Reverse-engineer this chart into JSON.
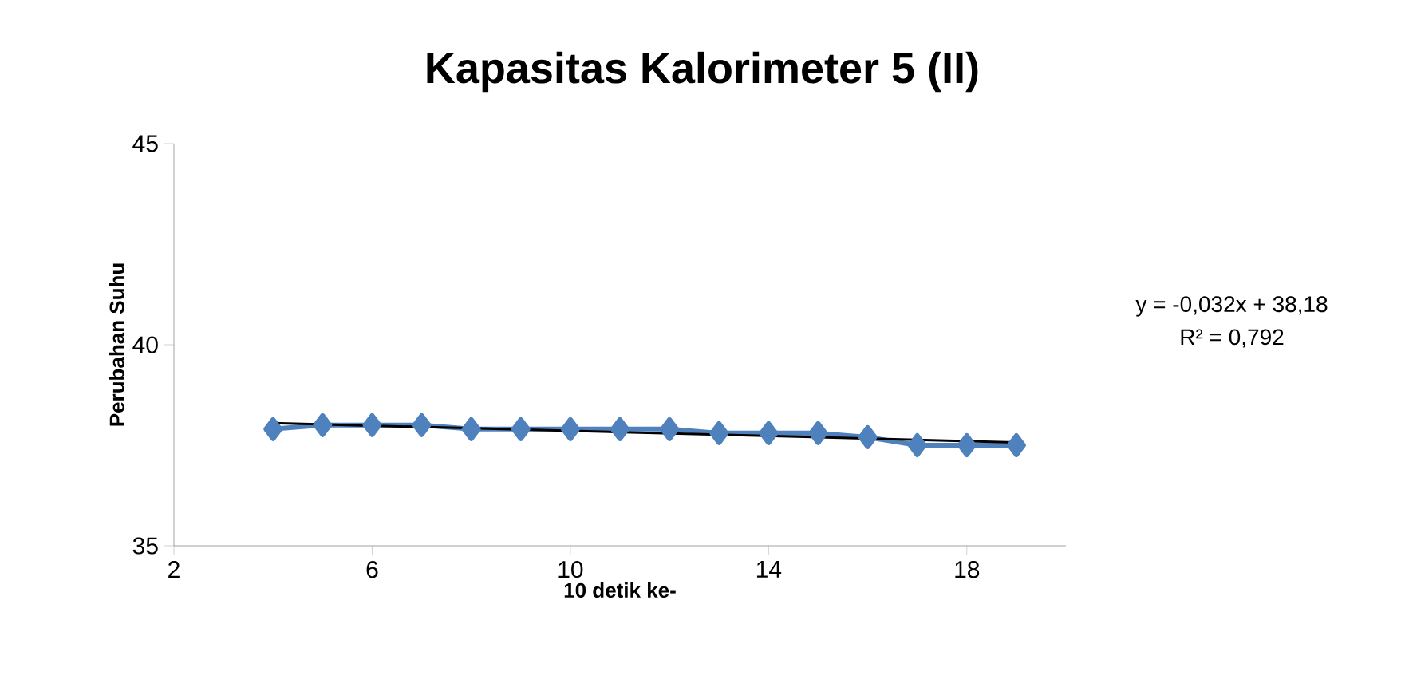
{
  "chart_data": {
    "type": "line",
    "title": "Kapasitas Kalorimeter 5 (II)",
    "xlabel": "10 detik ke-",
    "ylabel": "Perubahan Suhu",
    "x": [
      4,
      5,
      6,
      7,
      8,
      9,
      10,
      11,
      12,
      13,
      14,
      15,
      16,
      17,
      18,
      19
    ],
    "series": [
      {
        "color": "#4f81bd",
        "values": [
          37.9,
          38.0,
          38.0,
          38.0,
          37.9,
          37.9,
          37.9,
          37.9,
          37.9,
          37.8,
          37.8,
          37.8,
          37.7,
          37.5,
          37.5,
          37.5
        ]
      },
      {
        "type": "line",
        "marker": "none",
        "color": "#000000",
        "x": [
          4,
          19
        ],
        "values": [
          38.05,
          37.57
        ]
      }
    ],
    "marker": "diamond",
    "xlim": [
      2,
      20
    ],
    "ylim": [
      35,
      45
    ],
    "xticks": [
      2,
      6,
      10,
      14,
      18
    ],
    "yticks": [
      35,
      40,
      45
    ],
    "grid": false,
    "annotations": [
      "y = -0,032x + 38,18",
      "R² = 0,792"
    ]
  }
}
